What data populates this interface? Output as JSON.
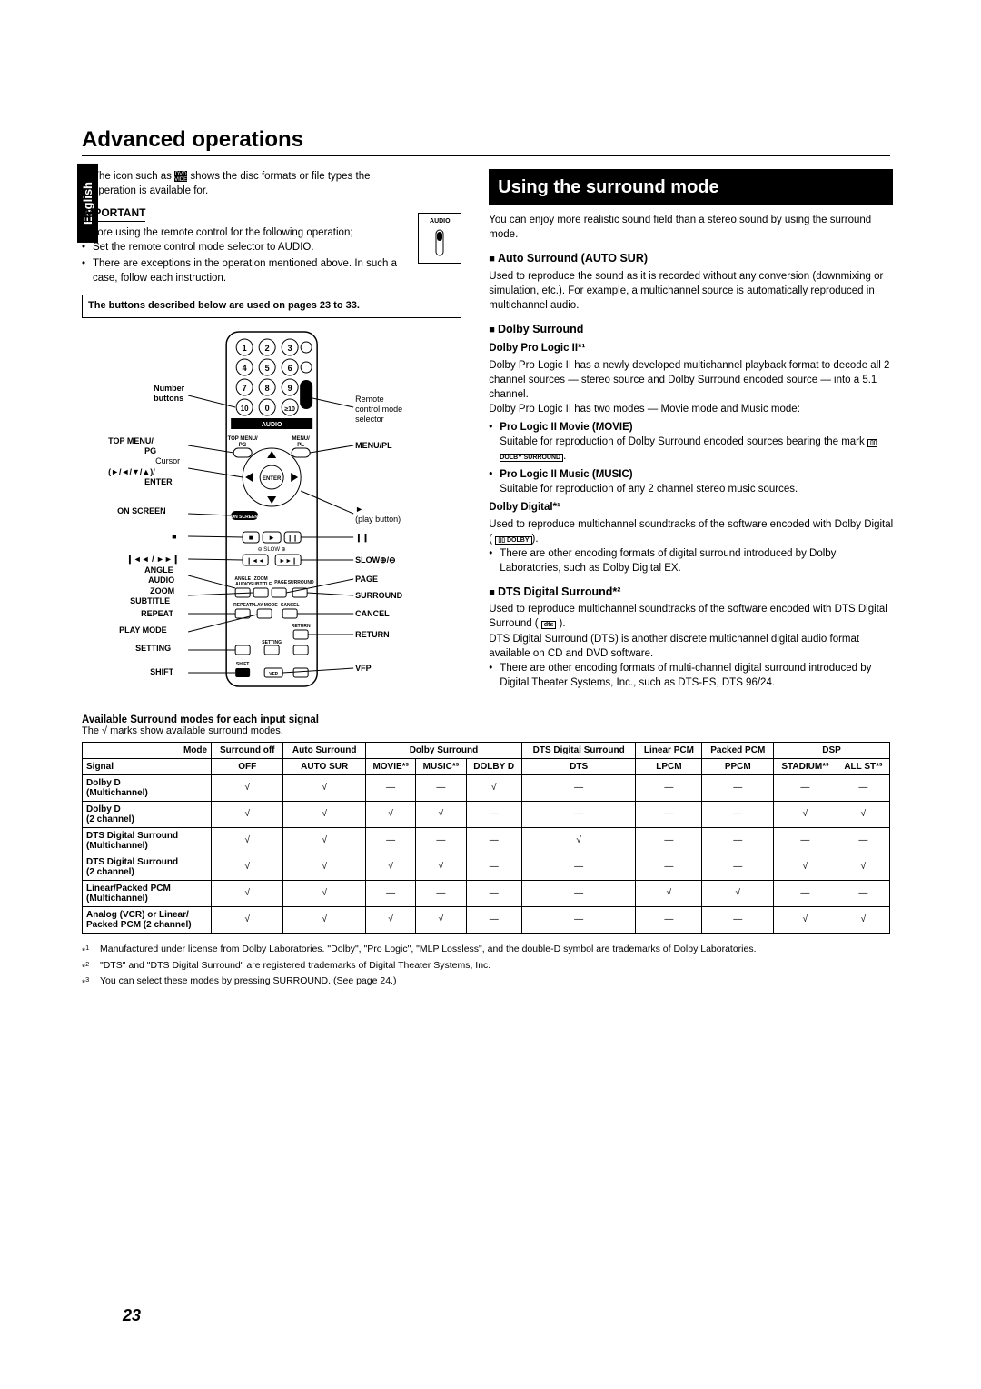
{
  "lang_tab": "English",
  "page_title": "Advanced operations",
  "left": {
    "icon_intro_a": "The icon such as ",
    "icon_intro_b": " shows the disc formats or file types the operation is available for.",
    "important": "IMPORTANT",
    "before_text": "Before using the remote control for the following operation;",
    "b1": "Set the remote control mode selector to AUDIO.",
    "b2": "There are exceptions in the operation mentioned above. In such a case, follow each instruction.",
    "infobar": "The buttons described below are used on pages 23 to 33.",
    "audio_switch": "AUDIO",
    "remote_labels": {
      "number": "Number buttons",
      "remote_sel": "Remote control mode selector",
      "top_menu": "TOP MENU/ PG",
      "menu_pl": "MENU/PL",
      "cursor": "Cursor (►/◄/▼/▲)/ ENTER",
      "on_screen": "ON SCREEN",
      "play": "► (play button)",
      "stop": "■",
      "pause": "❙❙",
      "prev_next": "❙◄◄ / ►►❙",
      "slow": "SLOW ⊕/⊖",
      "angle": "ANGLE",
      "audio": "AUDIO",
      "page": "PAGE",
      "zoom": "ZOOM",
      "subtitle": "SUBTITLE",
      "surround": "SURROUND",
      "repeat": "REPEAT",
      "cancel": "CANCEL",
      "playmode": "PLAY MODE",
      "return": "RETURN",
      "setting": "SETTING",
      "vfp": "VFP",
      "shift": "SHIFT"
    }
  },
  "right": {
    "banner": "Using the surround mode",
    "intro": "You can enjoy more realistic sound field than a stereo sound by using the surround mode.",
    "auto_h": "Auto Surround (AUTO SUR)",
    "auto_p": "Used to reproduce the sound as it is recorded without any conversion (downmixing or simulation, etc.). For example, a multichannel source is automatically reproduced in multichannel audio.",
    "dolby_h": "Dolby Surround",
    "plii_h": "Dolby Pro Logic II*¹",
    "plii_p1": "Dolby Pro Logic II has a newly developed multichannel playback format to decode all 2 channel sources — stereo source and Dolby Surround encoded source — into a 5.1 channel.",
    "plii_p2": "Dolby Pro Logic II has two modes — Movie mode and Music mode:",
    "movie_h": "Pro Logic II Movie (MOVIE)",
    "movie_p": "Suitable for reproduction of Dolby Surround encoded sources bearing the mark ",
    "music_h": "Pro Logic II Music (MUSIC)",
    "music_p": "Suitable for reproduction of any 2 channel stereo music sources.",
    "dd_h": "Dolby Digital*¹",
    "dd_p": "Used to reproduce multichannel soundtracks of the software encoded with Dolby Digital (",
    "dd_b": "There are other encoding formats of digital surround introduced by Dolby Laboratories, such as Dolby Digital EX.",
    "dts_h": "DTS Digital Surround*²",
    "dts_p1": "Used to reproduce multichannel soundtracks of the software encoded with DTS Digital Surround (",
    "dts_p2": "DTS Digital Surround (DTS) is another discrete multichannel digital audio format available on CD and DVD software.",
    "dts_b": "There are other encoding formats of multi-channel digital surround introduced by Digital Theater Systems, Inc., such as DTS-ES, DTS 96/24."
  },
  "table": {
    "title": "Available Surround modes for each input signal",
    "note": "The √ marks show available surround modes.",
    "top_headers": [
      "Mode",
      "Surround off",
      "Auto Surround",
      "Dolby Surround",
      "DTS Digital Surround",
      "Linear PCM",
      "Packed PCM",
      "DSP"
    ],
    "sub_headers": [
      "Signal",
      "OFF",
      "AUTO SUR",
      "MOVIE*³",
      "MUSIC*³",
      "DOLBY D",
      "DTS",
      "LPCM",
      "PPCM",
      "STADIUM*³",
      "ALL ST*³"
    ],
    "rows": [
      {
        "label": "Dolby D\n(Multichannel)",
        "cells": [
          "√",
          "√",
          "—",
          "—",
          "√",
          "—",
          "—",
          "—",
          "—",
          "—"
        ]
      },
      {
        "label": "Dolby D\n(2 channel)",
        "cells": [
          "√",
          "√",
          "√",
          "√",
          "—",
          "—",
          "—",
          "—",
          "√",
          "√"
        ]
      },
      {
        "label": "DTS Digital Surround\n(Multichannel)",
        "cells": [
          "√",
          "√",
          "—",
          "—",
          "—",
          "√",
          "—",
          "—",
          "—",
          "—"
        ]
      },
      {
        "label": "DTS Digital Surround\n(2 channel)",
        "cells": [
          "√",
          "√",
          "√",
          "√",
          "—",
          "—",
          "—",
          "—",
          "√",
          "√"
        ]
      },
      {
        "label": "Linear/Packed PCM\n(Multichannel)",
        "cells": [
          "√",
          "√",
          "—",
          "—",
          "—",
          "—",
          "√",
          "√",
          "—",
          "—"
        ]
      },
      {
        "label": "Analog (VCR) or Linear/\nPacked PCM (2 channel)",
        "cells": [
          "√",
          "√",
          "√",
          "√",
          "—",
          "—",
          "—",
          "—",
          "√",
          "√"
        ]
      }
    ]
  },
  "footnotes": {
    "f1": "Manufactured under license from Dolby Laboratories. \"Dolby\", \"Pro Logic\", \"MLP Lossless\", and the double-D symbol are trademarks of Dolby Laboratories.",
    "f2": "\"DTS\" and \"DTS Digital Surround\" are registered trademarks of Digital Theater Systems, Inc.",
    "f3": "You can select these modes by pressing SURROUND. (See page 24.)"
  },
  "pagenum": "23"
}
